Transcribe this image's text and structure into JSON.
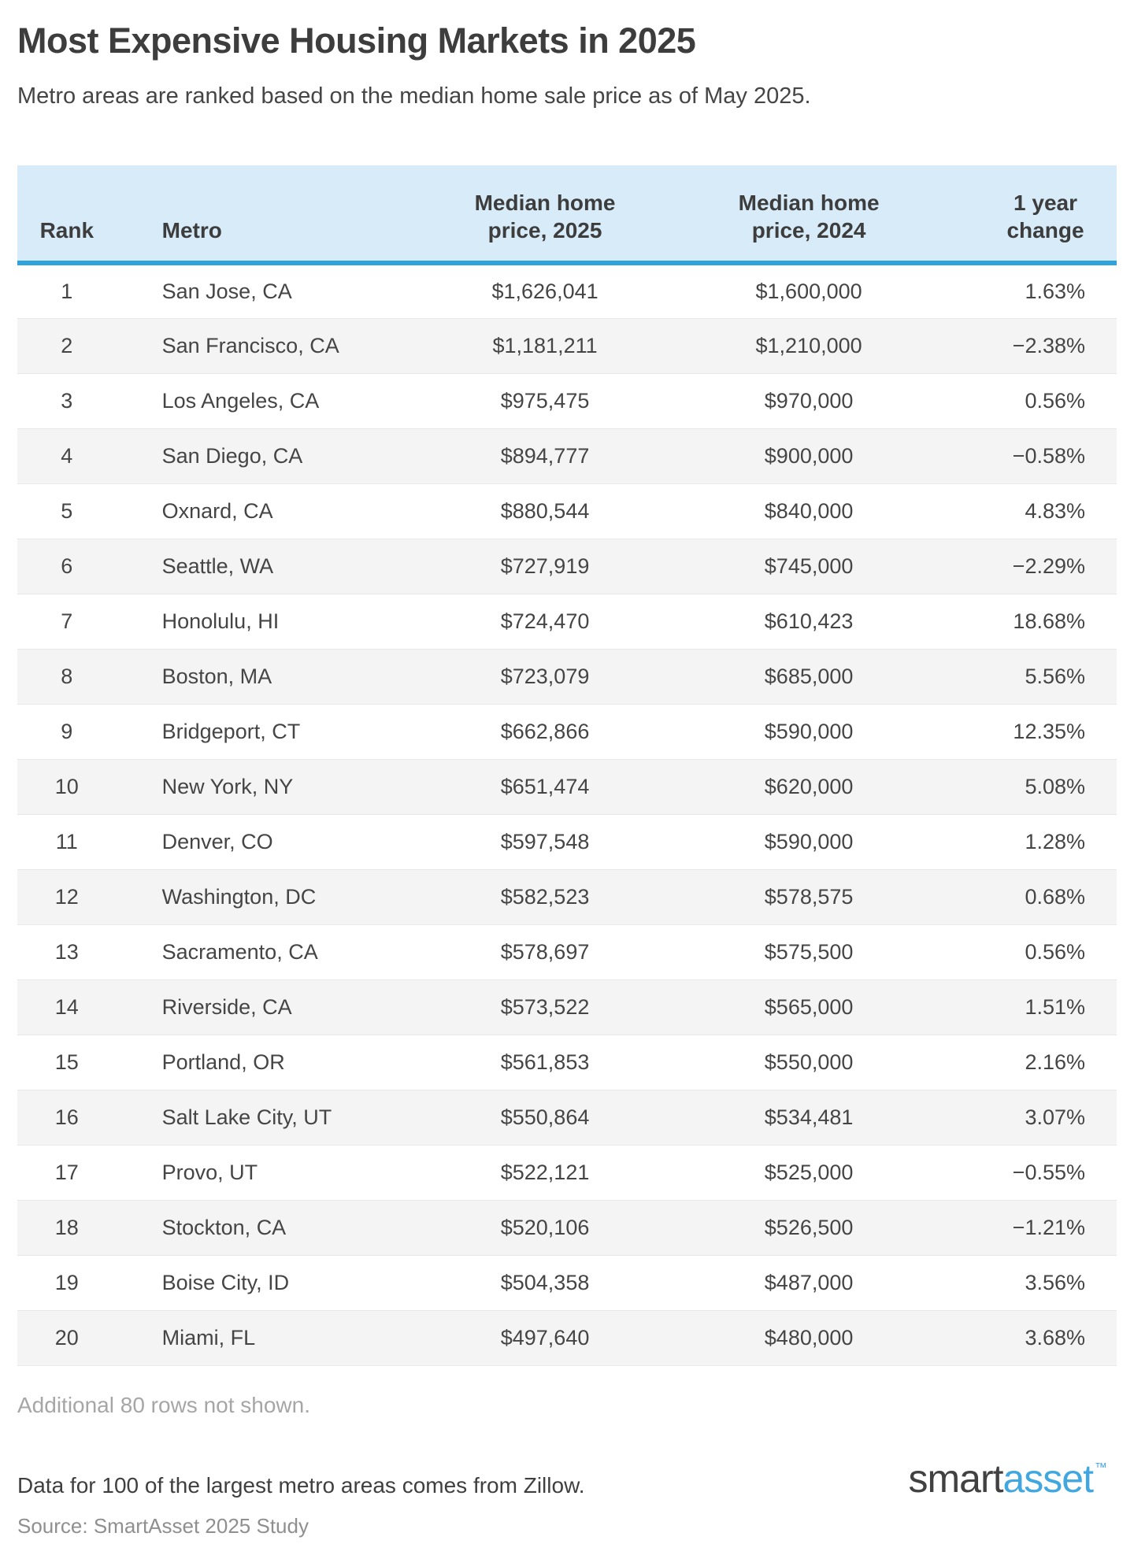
{
  "header": {
    "title": "Most Expensive Housing Markets in 2025",
    "subtitle": "Metro areas are ranked based on the median home sale price as of May 2025."
  },
  "chart_data": {
    "type": "table",
    "title": "Most Expensive Housing Markets in 2025",
    "subtitle": "Metro areas are ranked based on the median home sale price as of May 2025.",
    "columns": [
      "Rank",
      "Metro",
      "Median home price, 2025",
      "Median home price, 2024",
      "1 year change"
    ],
    "rows": [
      [
        "1",
        "San Jose, CA",
        "$1,626,041",
        "$1,600,000",
        "1.63%"
      ],
      [
        "2",
        "San Francisco, CA",
        "$1,181,211",
        "$1,210,000",
        "−2.38%"
      ],
      [
        "3",
        "Los Angeles, CA",
        "$975,475",
        "$970,000",
        "0.56%"
      ],
      [
        "4",
        "San Diego, CA",
        "$894,777",
        "$900,000",
        "−0.58%"
      ],
      [
        "5",
        "Oxnard, CA",
        "$880,544",
        "$840,000",
        "4.83%"
      ],
      [
        "6",
        "Seattle, WA",
        "$727,919",
        "$745,000",
        "−2.29%"
      ],
      [
        "7",
        "Honolulu, HI",
        "$724,470",
        "$610,423",
        "18.68%"
      ],
      [
        "8",
        "Boston, MA",
        "$723,079",
        "$685,000",
        "5.56%"
      ],
      [
        "9",
        "Bridgeport, CT",
        "$662,866",
        "$590,000",
        "12.35%"
      ],
      [
        "10",
        "New York, NY",
        "$651,474",
        "$620,000",
        "5.08%"
      ],
      [
        "11",
        "Denver, CO",
        "$597,548",
        "$590,000",
        "1.28%"
      ],
      [
        "12",
        "Washington, DC",
        "$582,523",
        "$578,575",
        "0.68%"
      ],
      [
        "13",
        "Sacramento, CA",
        "$578,697",
        "$575,500",
        "0.56%"
      ],
      [
        "14",
        "Riverside, CA",
        "$573,522",
        "$565,000",
        "1.51%"
      ],
      [
        "15",
        "Portland, OR",
        "$561,853",
        "$550,000",
        "2.16%"
      ],
      [
        "16",
        "Salt Lake City, UT",
        "$550,864",
        "$534,481",
        "3.07%"
      ],
      [
        "17",
        "Provo, UT",
        "$522,121",
        "$525,000",
        "−0.55%"
      ],
      [
        "18",
        "Stockton, CA",
        "$520,106",
        "$526,500",
        "−1.21%"
      ],
      [
        "19",
        "Boise City, ID",
        "$504,358",
        "$487,000",
        "3.56%"
      ],
      [
        "20",
        "Miami, FL",
        "$497,640",
        "$480,000",
        "3.68%"
      ]
    ]
  },
  "footer": {
    "note": "Additional 80 rows not shown.",
    "data_text": "Data for 100 of the largest metro areas comes from Zillow.",
    "source": "Source: SmartAsset 2025 Study"
  },
  "logo": {
    "part1": "smart",
    "part2": "asset",
    "tm": "™"
  },
  "colors": {
    "header_background": "#d7ebf8",
    "header_rule": "#2ea3dc",
    "stripe_row": "#f4f4f5",
    "title_text": "#3d3d3d",
    "body_text": "#454545",
    "muted_text": "#a6a6a6",
    "source_text": "#8f8f8f",
    "logo_blue": "#41a7e0",
    "logo_dark": "#414141"
  }
}
